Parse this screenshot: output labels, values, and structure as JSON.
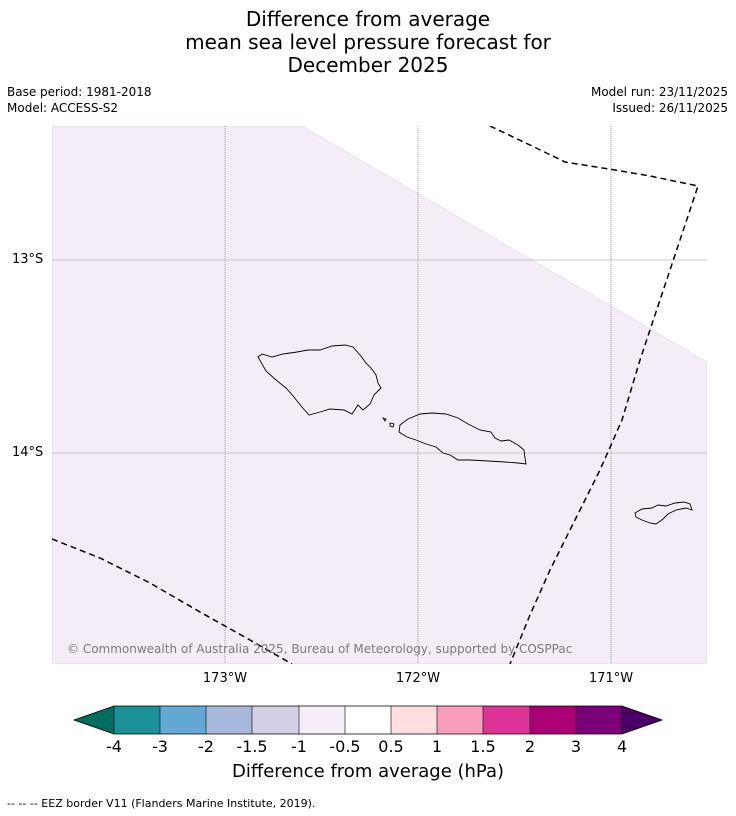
{
  "title_lines": [
    "Difference from average",
    "mean sea level pressure forecast for",
    "December 2025"
  ],
  "meta": {
    "base_period": "Base period: 1981-2018",
    "model": "Model: ACCESS-S2",
    "model_run": "Model run: 23/11/2025",
    "issued": "Issued: 26/11/2025"
  },
  "map": {
    "lat_labels": [
      "13°S",
      "14°S"
    ],
    "lon_labels": [
      "173°W",
      "172°W",
      "171°W"
    ],
    "copyright": "© Commonwealth of Australia 2025, Bureau of Meteorology, supported by COSPPac",
    "fill_category": "-1 to -0.5",
    "fill_color": "#f4ecf6",
    "border_style": "dashed black",
    "islands": [
      "Savai'i",
      "Upolu",
      "Tutuila"
    ]
  },
  "colorbar": {
    "title": "Difference from average (hPa)",
    "tick_labels": [
      "-4",
      "-3",
      "-2",
      "-1.5",
      "-1",
      "-0.5",
      "0.5",
      "1",
      "1.5",
      "2",
      "3",
      "4"
    ],
    "colors": [
      "#006e5e",
      "#1a9199",
      "#63a8d2",
      "#a7b9da",
      "#d3d0e6",
      "#f4ecf6",
      "#ffffff",
      "#fedede",
      "#f89dbb",
      "#dd3597",
      "#ac0077",
      "#7c0079",
      "#4a0066"
    ]
  },
  "footer": "--  --  -- EEZ border V11 (Flanders Marine Institute, 2019)."
}
